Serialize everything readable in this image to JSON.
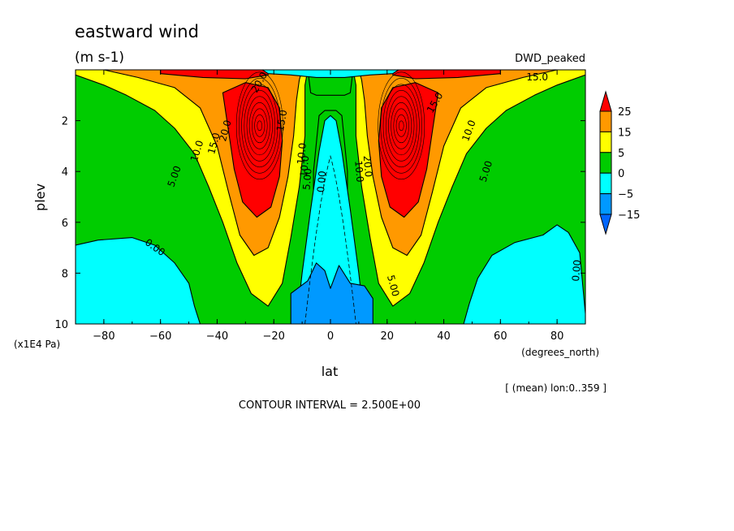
{
  "chart_data": {
    "type": "heatmap",
    "title": "eastward wind",
    "subtitle": "(m s-1)",
    "dataset": "DWD_peaked",
    "xlabel": "lat",
    "xunits": "(degrees_north)",
    "ylabel": "plev",
    "yunits": "(x1E4 Pa)",
    "xlim": [
      -90,
      90
    ],
    "ylim": [
      10,
      0
    ],
    "xticks": [
      -80,
      -60,
      -40,
      -20,
      0,
      20,
      40,
      60,
      80
    ],
    "yticks": [
      2,
      4,
      6,
      8,
      10
    ],
    "mean_note": "[ (mean) lon:0..359 ]",
    "contour_interval": "CONTOUR INTERVAL = 2.500E+00",
    "colorbar": {
      "labels": [
        "25",
        "15",
        "5",
        "0",
        "-5",
        "-15"
      ],
      "bands": [
        {
          "min": 25,
          "max": null,
          "color": "#ff0000"
        },
        {
          "min": 15,
          "max": 25,
          "color": "#ff9900"
        },
        {
          "min": 5,
          "max": 15,
          "color": "#ffff00"
        },
        {
          "min": 0,
          "max": 5,
          "color": "#00cc00"
        },
        {
          "min": -5,
          "max": 0,
          "color": "#00ffff"
        },
        {
          "min": -15,
          "max": -5,
          "color": "#0099ff"
        },
        {
          "min": null,
          "max": -15,
          "color": "#0066ff"
        }
      ]
    },
    "contour_labels": [
      {
        "text": "10.0",
        "lat": -47,
        "plev": 3.2,
        "angle": -72
      },
      {
        "text": "5.00",
        "lat": -55,
        "plev": 4.2,
        "angle": -70
      },
      {
        "text": "0.00",
        "lat": -62,
        "plev": 7.0,
        "angle": 35
      },
      {
        "text": "15.0",
        "lat": -41,
        "plev": 2.9,
        "angle": -75
      },
      {
        "text": "20.0",
        "lat": -37,
        "plev": 2.4,
        "angle": -75
      },
      {
        "text": "15.0",
        "lat": -17,
        "plev": 2.0,
        "angle": -80
      },
      {
        "text": "10.0",
        "lat": -10,
        "plev": 3.3,
        "angle": -85
      },
      {
        "text": "5.00",
        "lat": -8,
        "plev": 4.3,
        "angle": -85
      },
      {
        "text": "10.0",
        "lat": -9,
        "plev": 3.8,
        "angle": -85
      },
      {
        "text": "0.00",
        "lat": -3,
        "plev": 4.4,
        "angle": -85
      },
      {
        "text": "10.0",
        "lat": 10,
        "plev": 4.0,
        "angle": 85
      },
      {
        "text": "20.0",
        "lat": 13,
        "plev": 3.8,
        "angle": 85
      },
      {
        "text": "5.00",
        "lat": 22,
        "plev": 8.5,
        "angle": 75
      },
      {
        "text": "10.0",
        "lat": 49,
        "plev": 2.4,
        "angle": -70
      },
      {
        "text": "5.00",
        "lat": 55,
        "plev": 4.0,
        "angle": -72
      },
      {
        "text": "0.00",
        "lat": 87,
        "plev": 7.9,
        "angle": -85
      },
      {
        "text": "15.0",
        "lat": 73,
        "plev": 0.3,
        "angle": 0
      },
      {
        "text": "15.0",
        "lat": 37,
        "plev": 1.3,
        "angle": -60
      },
      {
        "text": "20.0",
        "lat": -25,
        "plev": 0.5,
        "angle": -60
      }
    ]
  }
}
